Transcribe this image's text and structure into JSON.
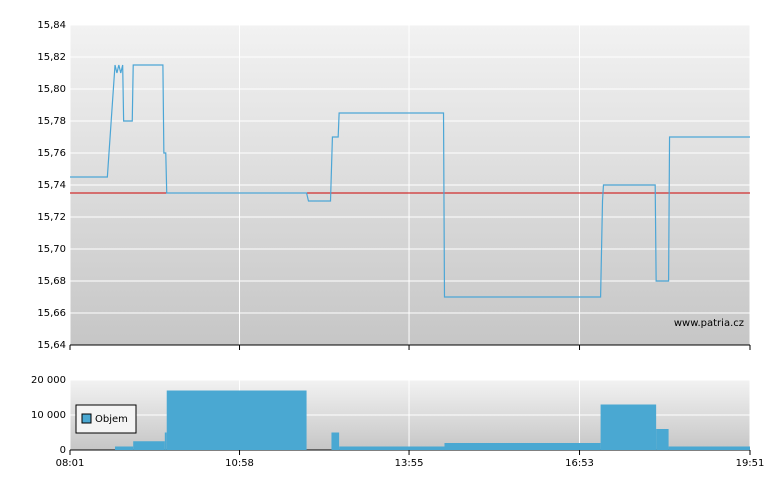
{
  "chart_data": [
    {
      "type": "line",
      "watermark": "www.patria.cz",
      "x": [
        "08:01",
        "08:40",
        "08:48",
        "08:50",
        "08:52",
        "08:54",
        "08:56",
        "08:57",
        "09:06",
        "09:07",
        "09:38",
        "09:39",
        "09:41",
        "09:42",
        "12:08",
        "12:10",
        "12:33",
        "12:35",
        "12:41",
        "12:42",
        "14:31",
        "14:32",
        "17:15",
        "17:17",
        "17:18",
        "18:12",
        "18:13",
        "18:26",
        "18:27",
        "19:51"
      ],
      "series": [
        {
          "color": "#4ca6d6",
          "values": [
            15.745,
            15.745,
            15.815,
            15.81,
            15.815,
            15.81,
            15.815,
            15.78,
            15.78,
            15.815,
            15.815,
            15.76,
            15.76,
            15.735,
            15.735,
            15.73,
            15.73,
            15.77,
            15.77,
            15.785,
            15.785,
            15.67,
            15.67,
            15.73,
            15.74,
            15.74,
            15.68,
            15.68,
            15.77,
            15.77
          ]
        }
      ],
      "reference_line": 15.735,
      "reference_color": "#cc0000",
      "xlim": [
        "08:01",
        "19:51"
      ],
      "xticks": [
        "08:01",
        "10:58",
        "13:55",
        "16:53",
        "19:51"
      ],
      "ylim": [
        15.64,
        15.84
      ],
      "yticks": [
        {
          "value": 15.64,
          "label": "15,64"
        },
        {
          "value": 15.66,
          "label": "15,66"
        },
        {
          "value": 15.68,
          "label": "15,68"
        },
        {
          "value": 15.7,
          "label": "15,70"
        },
        {
          "value": 15.72,
          "label": "15,72"
        },
        {
          "value": 15.74,
          "label": "15,74"
        },
        {
          "value": 15.76,
          "label": "15,76"
        },
        {
          "value": 15.78,
          "label": "15,78"
        },
        {
          "value": 15.8,
          "label": "15,80"
        },
        {
          "value": 15.82,
          "label": "15,82"
        },
        {
          "value": 15.84,
          "label": "15,84"
        }
      ],
      "grid": true
    },
    {
      "type": "bar",
      "x": [
        "08:01",
        "08:48",
        "09:07",
        "09:40",
        "09:42",
        "12:08",
        "12:34",
        "12:42",
        "14:32",
        "17:15",
        "18:13",
        "18:26"
      ],
      "series": [
        {
          "name": "Objem",
          "color": "#4aa8d2",
          "values": [
            0,
            1000,
            2500,
            5000,
            17000,
            0,
            5000,
            1000,
            2000,
            13000,
            6000,
            1000
          ]
        }
      ],
      "xlim": [
        "08:01",
        "19:51"
      ],
      "xticks": [
        "08:01",
        "10:58",
        "13:55",
        "16:53",
        "19:51"
      ],
      "ylim": [
        0,
        20000
      ],
      "yticks": [
        0,
        {
          "value": 10000,
          "label": "10 000"
        },
        {
          "value": 20000,
          "label": "20 000"
        }
      ],
      "grid": true,
      "legend": "left"
    }
  ]
}
